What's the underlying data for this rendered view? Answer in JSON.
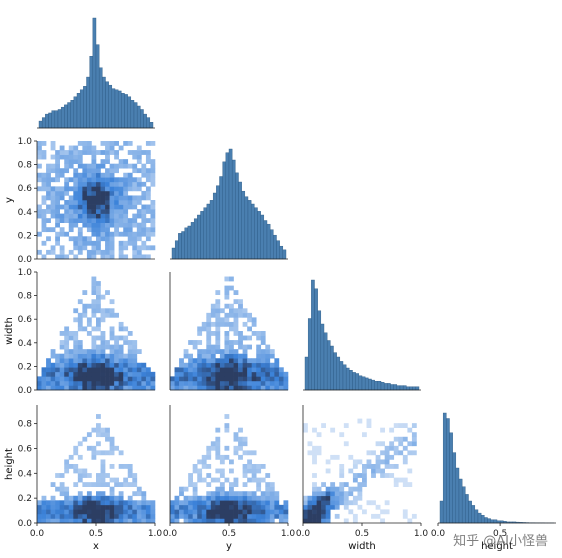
{
  "chart_data": {
    "type": "pairplot",
    "variables": [
      "x",
      "y",
      "width",
      "height"
    ],
    "bar_color": "#4a7fb0",
    "heat_colors": [
      "#cfe0f6",
      "#3b82d9",
      "#2c3e63"
    ],
    "axes": {
      "x": {
        "range": [
          0.0,
          1.0
        ],
        "ticks": [
          "0.0",
          "0.5",
          "1.0"
        ],
        "tick_values": [
          0.0,
          0.5,
          1.0
        ]
      },
      "y": {
        "range": [
          0.0,
          1.0
        ],
        "ticks": [
          "0.0",
          "0.5",
          "1.0"
        ],
        "tick_values": [
          0.0,
          0.5,
          1.0
        ],
        "row_ticks": [
          "0.0",
          "0.2",
          "0.4",
          "0.6",
          "0.8",
          "1.0"
        ],
        "row_tick_values": [
          0.0,
          0.2,
          0.4,
          0.6,
          0.8,
          1.0
        ]
      },
      "width": {
        "range": [
          0.0,
          1.0
        ],
        "ticks": [
          "0.0",
          "0.5",
          "1.0"
        ],
        "tick_values": [
          0.0,
          0.5,
          1.0
        ],
        "row_ticks": [
          "0.0",
          "0.2",
          "0.4",
          "0.6",
          "0.8",
          "1.0"
        ],
        "row_tick_values": [
          0.0,
          0.2,
          0.4,
          0.6,
          0.8,
          1.0
        ]
      },
      "height": {
        "range": [
          0.0,
          0.95
        ],
        "ticks": [
          "0.0",
          "0.5"
        ],
        "tick_values": [
          0.0,
          0.5
        ],
        "row_ticks": [
          "0.0",
          "0.2",
          "0.4",
          "0.6",
          "0.8"
        ],
        "row_tick_values": [
          0.0,
          0.2,
          0.4,
          0.6,
          0.8
        ]
      }
    },
    "histograms": {
      "x": [
        6,
        9,
        12,
        13,
        15,
        15,
        16,
        18,
        20,
        22,
        24,
        27,
        30,
        33,
        36,
        44,
        62,
        95,
        72,
        52,
        44,
        40,
        37,
        34,
        33,
        32,
        30,
        29,
        27,
        24,
        22,
        19,
        16,
        12,
        9,
        5
      ],
      "y": [
        6,
        10,
        14,
        15,
        17,
        18,
        20,
        22,
        24,
        26,
        28,
        30,
        32,
        36,
        40,
        45,
        53,
        58,
        60,
        54,
        47,
        42,
        37,
        34,
        32,
        30,
        28,
        26,
        24,
        21,
        19,
        16,
        13,
        10,
        7,
        5
      ],
      "width": [
        30,
        65,
        100,
        92,
        72,
        60,
        52,
        45,
        40,
        34,
        30,
        26,
        23,
        20,
        18,
        16,
        15,
        13,
        12,
        11,
        10,
        9,
        8,
        8,
        7,
        6,
        6,
        5,
        5,
        4,
        4,
        4,
        3,
        3,
        3,
        3
      ],
      "height": [
        20,
        100,
        95,
        82,
        64,
        50,
        40,
        33,
        26,
        20,
        16,
        12,
        9,
        7,
        5,
        4,
        3,
        3,
        2,
        2,
        1.5,
        1,
        1,
        1,
        0.8,
        0.6,
        0.5,
        0.4,
        0.3,
        0.3,
        0.2,
        0.2,
        0.2,
        0.1,
        0.1,
        0.1
      ]
    },
    "watermark": "知乎 @AI小怪兽"
  }
}
